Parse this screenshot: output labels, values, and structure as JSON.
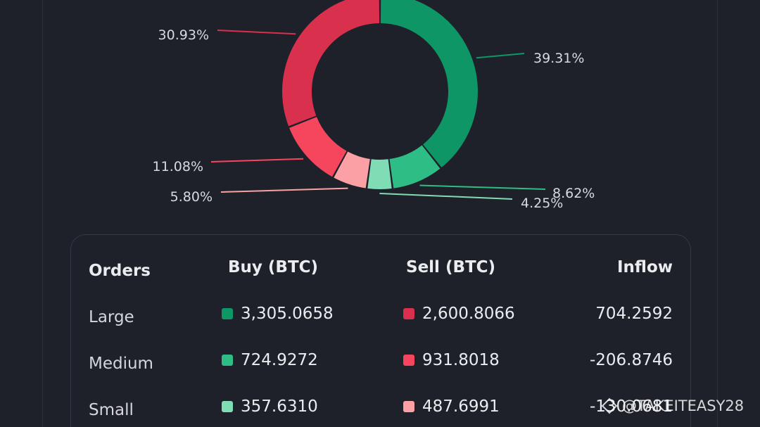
{
  "donut": {
    "segments": [
      {
        "key": "large_buy",
        "percent": 39.31,
        "label": "39.31%",
        "color": "#0e9667"
      },
      {
        "key": "medium_buy",
        "percent": 8.62,
        "label": "8.62%",
        "color": "#2ebd85"
      },
      {
        "key": "small_buy",
        "percent": 4.25,
        "label": "4.25%",
        "color": "#7fdcb5"
      },
      {
        "key": "small_sell",
        "percent": 5.8,
        "label": "5.80%",
        "color": "#fba0a5"
      },
      {
        "key": "medium_sell",
        "percent": 11.08,
        "label": "11.08%",
        "color": "#f6465d"
      },
      {
        "key": "large_sell",
        "percent": 30.93,
        "label": "30.93%",
        "color": "#d9304e"
      }
    ]
  },
  "table": {
    "headers": {
      "orders": "Orders",
      "buy": "Buy (BTC)",
      "sell": "Sell (BTC)",
      "inflow": "Inflow"
    },
    "rows": [
      {
        "label": "Large",
        "buy": "3,305.0658",
        "sell": "2,600.8066",
        "inflow": "704.2592",
        "buy_color": "#0e9667",
        "sell_color": "#d9304e"
      },
      {
        "label": "Medium",
        "buy": "724.9272",
        "sell": "931.8018",
        "inflow": "-206.8746",
        "buy_color": "#2ebd85",
        "sell_color": "#f6465d"
      },
      {
        "label": "Small",
        "buy": "357.6310",
        "sell": "487.6991",
        "inflow": "-130.0681",
        "buy_color": "#7fdcb5",
        "sell_color": "#fba0a5"
      }
    ]
  },
  "watermark": {
    "text": "@TAKEITEASY28",
    "icon": "diamond-logo-icon"
  }
}
